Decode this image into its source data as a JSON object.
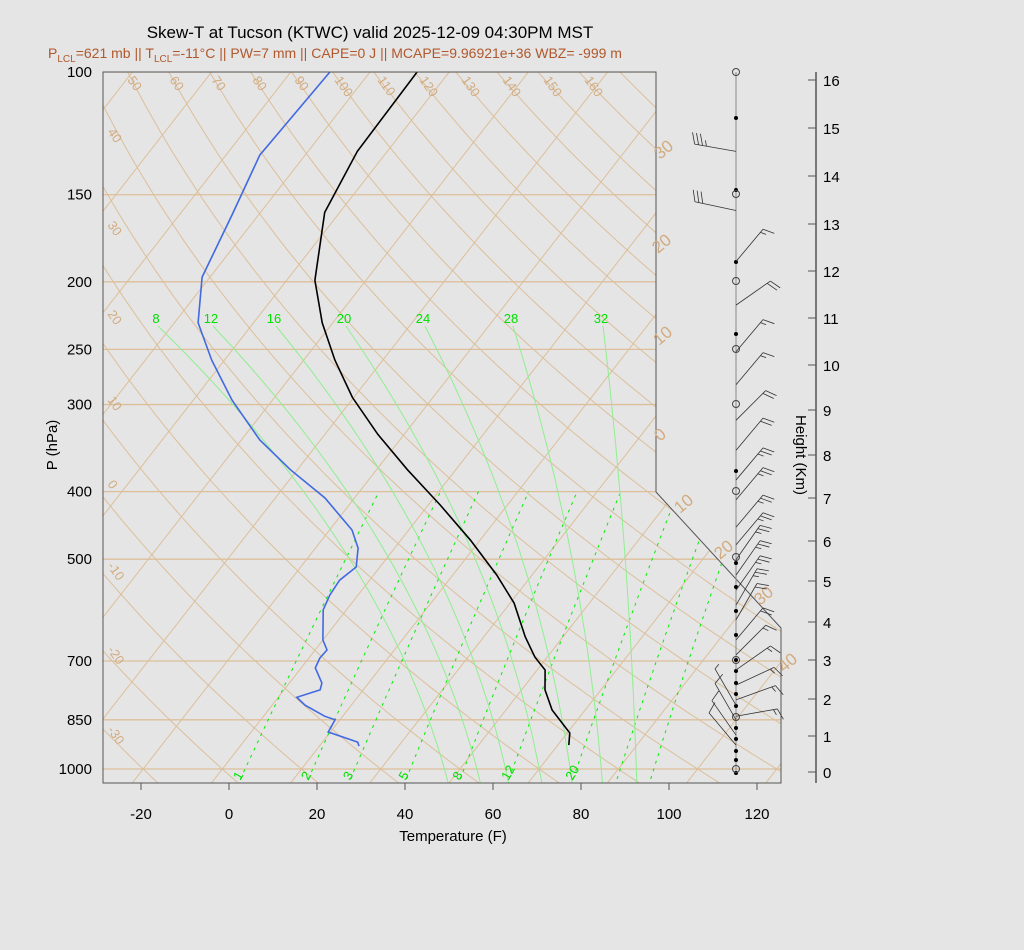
{
  "title": "Skew-T at Tucson (KTWC) valid 2025-12-09 04:30PM MST",
  "subtitle": {
    "p": "P",
    "p_sub": "LCL",
    "p_val": "=621 mb || T",
    "t_sub": "LCL",
    "rest": "=-11°C || PW=7 mm || CAPE=0 J || MCAPE=9.96921e+36 WBZ= -999 m"
  },
  "colors": {
    "temperature": "#000000",
    "dewpoint": "#4169e1",
    "grid": "#dcbf9a",
    "moist": "#90ee90",
    "mixing": "#00ee00",
    "subtitle": "#b0582c"
  },
  "chart_data": {
    "type": "line",
    "subtype": "skew-t log-p",
    "xlabel": "Temperature (F)",
    "ylabel": "P (hPa)",
    "y2label": "Height (Km)",
    "x_ticks": [
      "-20",
      "0",
      "20",
      "40",
      "60",
      "80",
      "100",
      "120"
    ],
    "x_tick_values": [
      -20,
      0,
      20,
      40,
      60,
      80,
      100,
      120
    ],
    "p_ticks": [
      "100",
      "150",
      "200",
      "250",
      "300",
      "400",
      "500",
      "700",
      "850",
      "1000"
    ],
    "p_tick_values": [
      100,
      150,
      200,
      250,
      300,
      400,
      500,
      700,
      850,
      1000
    ],
    "height_ticks": [
      "0",
      "1",
      "2",
      "3",
      "4",
      "5",
      "6",
      "7",
      "8",
      "9",
      "10",
      "11",
      "12",
      "13",
      "14",
      "15",
      "16"
    ],
    "y_scale": "log",
    "plim": [
      1050,
      100
    ],
    "dry_adiabat_labels_top": [
      "50",
      "60",
      "70",
      "80",
      "90",
      "100",
      "110",
      "120",
      "130",
      "140",
      "150",
      "160"
    ],
    "dry_adiabat_labels_left": [
      "40",
      "30",
      "20",
      "10",
      "0",
      "-10",
      "-20",
      "-30"
    ],
    "isotherm_labels_right": [
      "30",
      "20",
      "10",
      "0",
      "10",
      "20",
      "30",
      "40"
    ],
    "moist_adiabat_labels": [
      "8",
      "12",
      "16",
      "20",
      "24",
      "28",
      "32"
    ],
    "mixing_ratio_labels": [
      "1",
      "2",
      "3",
      "5",
      "8",
      "12",
      "20"
    ],
    "mixing_ratio_values": [
      1,
      2,
      3,
      5,
      8,
      12,
      20
    ],
    "series": [
      {
        "key": "temperature",
        "p": [
          100,
          130,
          159,
          199,
          229,
          259,
          293,
          331,
          372,
          418,
          469,
          527,
          578,
          646,
          691,
          721,
          770,
          823,
          888,
          924
        ],
        "t": [
          -83.3,
          -82.8,
          -79.4,
          -69.6,
          -60.4,
          -50.9,
          -40.3,
          -28.0,
          -15.0,
          -1.3,
          11.7,
          24.0,
          32.9,
          41.4,
          47.2,
          51.8,
          55.3,
          60.5,
          68.6,
          70.5
        ]
      },
      {
        "key": "dewpoint",
        "p": [
          100,
          131.6,
          160.4,
          196.9,
          229,
          259,
          295.6,
          337.3,
          372,
          408.5,
          454,
          482,
          513,
          536,
          563,
          591,
          653,
          675,
          693,
          716,
          753,
          770,
          789,
          810,
          840,
          850,
          885,
          915,
          927
        ],
        "t": [
          -103.1,
          -104.3,
          -100.0,
          -95.8,
          -88.6,
          -78.9,
          -67.2,
          -53.8,
          -41.6,
          -28.7,
          -16.9,
          -12.3,
          -9.4,
          -10.8,
          -10.4,
          -9.3,
          -4.0,
          -1.3,
          -1.5,
          -0.8,
          3.4,
          4.2,
          0.2,
          3.5,
          9.9,
          12.9,
          13.5,
          22.0,
          23.0
        ]
      }
    ],
    "wind_barbs": [
      {
        "p": 130,
        "dir": 280,
        "spd": 35
      },
      {
        "p": 158,
        "dir": 282,
        "spd": 30
      },
      {
        "p": 187,
        "dir": 40,
        "spd": 15
      },
      {
        "p": 216,
        "dir": 55,
        "spd": 20
      },
      {
        "p": 252,
        "dir": 40,
        "spd": 15
      },
      {
        "p": 281,
        "dir": 40,
        "spd": 15
      },
      {
        "p": 316,
        "dir": 45,
        "spd": 20
      },
      {
        "p": 349,
        "dir": 40,
        "spd": 20
      },
      {
        "p": 385,
        "dir": 40,
        "spd": 25
      },
      {
        "p": 411,
        "dir": 40,
        "spd": 25
      },
      {
        "p": 450,
        "dir": 40,
        "spd": 25
      },
      {
        "p": 477,
        "dir": 40,
        "spd": 25
      },
      {
        "p": 501,
        "dir": 35,
        "spd": 25
      },
      {
        "p": 527,
        "dir": 35,
        "spd": 25
      },
      {
        "p": 554,
        "dir": 35,
        "spd": 25
      },
      {
        "p": 582,
        "dir": 30,
        "spd": 25
      },
      {
        "p": 611,
        "dir": 30,
        "spd": 20
      },
      {
        "p": 653,
        "dir": 40,
        "spd": 20
      },
      {
        "p": 686,
        "dir": 45,
        "spd": 15
      },
      {
        "p": 721,
        "dir": 55,
        "spd": 15
      },
      {
        "p": 758,
        "dir": 65,
        "spd": 15
      },
      {
        "p": 796,
        "dir": 70,
        "spd": 15
      },
      {
        "p": 840,
        "dir": 80,
        "spd": 15
      },
      {
        "p": 810,
        "dir": 330,
        "spd": 5
      },
      {
        "p": 850,
        "dir": 330,
        "spd": 10
      },
      {
        "p": 894,
        "dir": 325,
        "spd": 10
      },
      {
        "p": 924,
        "dir": 320,
        "spd": 10
      }
    ],
    "grid": true
  }
}
